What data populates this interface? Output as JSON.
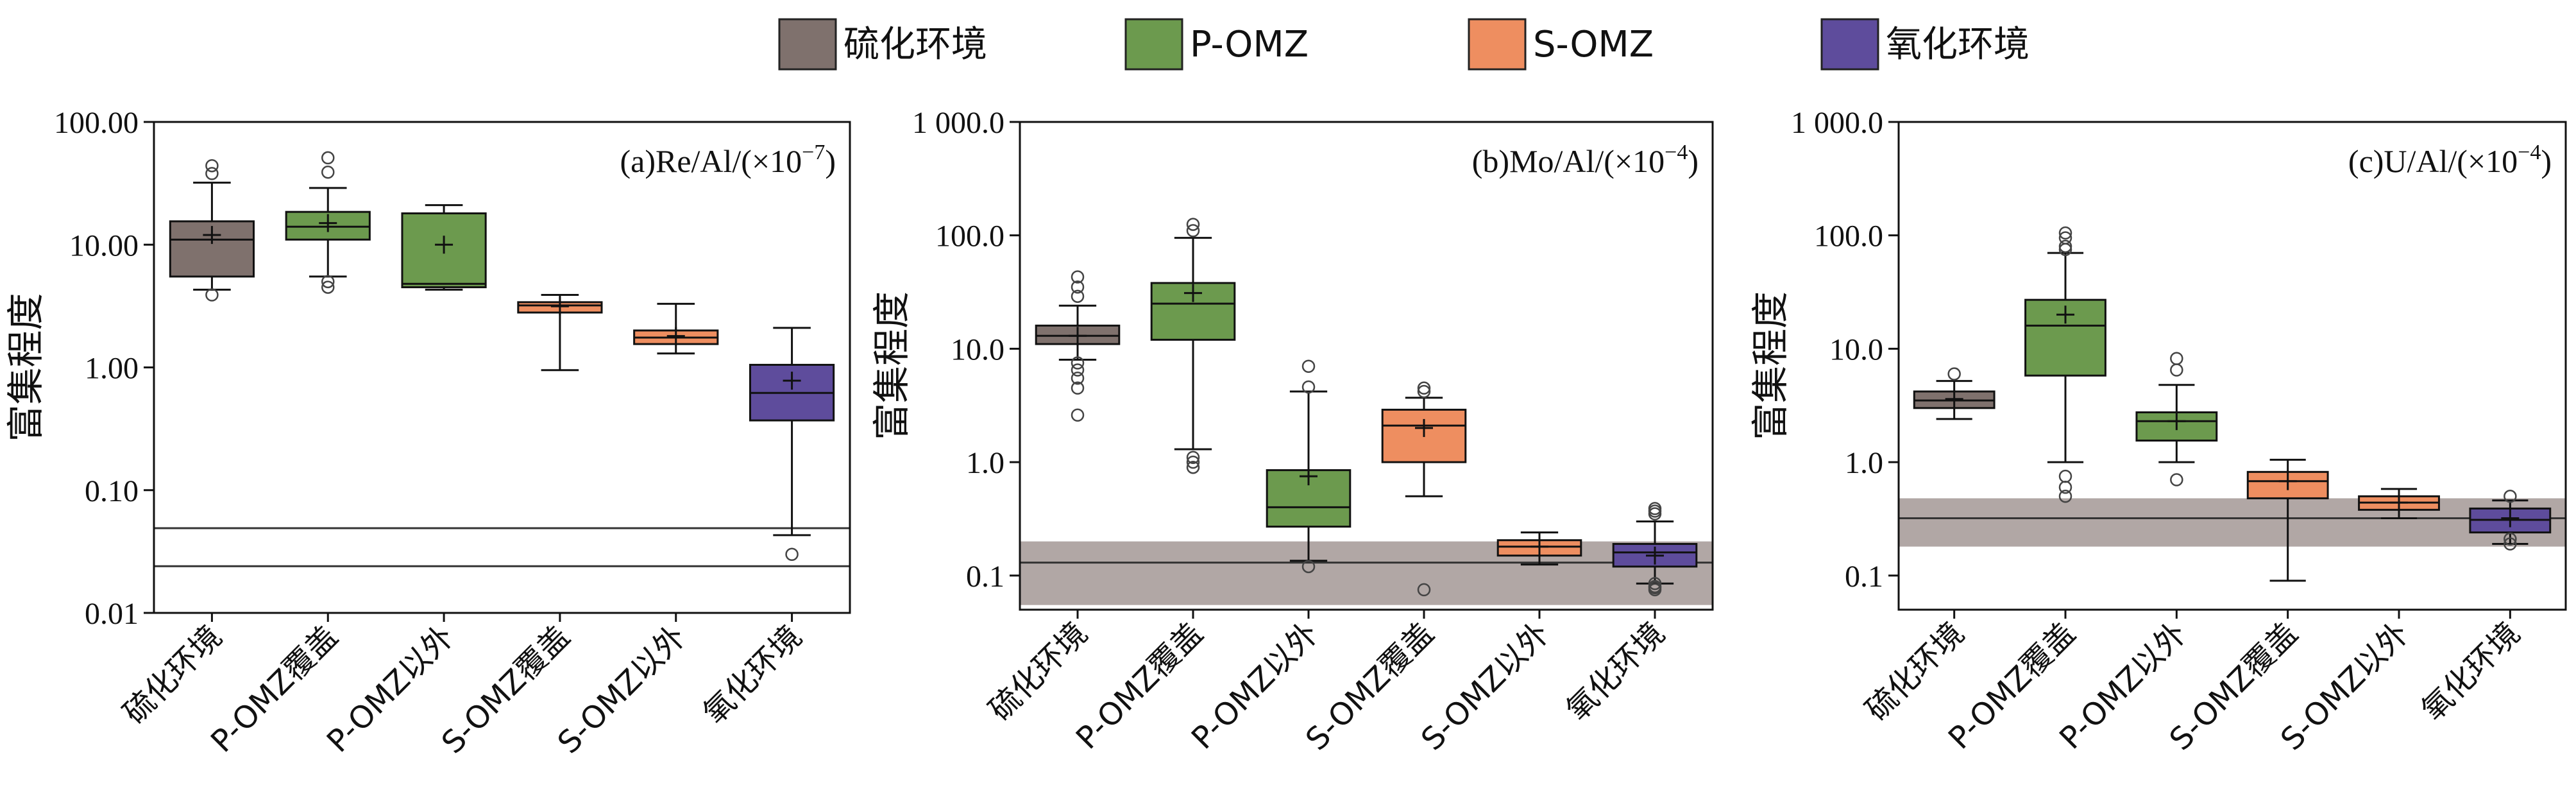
{
  "legend": {
    "items": [
      {
        "label": "硫化环境",
        "color": "#7f716d"
      },
      {
        "label": "P-OMZ",
        "color": "#6c9a4e"
      },
      {
        "label": "S-OMZ",
        "color": "#ee8e60"
      },
      {
        "label": "氧化环境",
        "color": "#5e4c9c"
      }
    ]
  },
  "chart_data": [
    {
      "type": "box",
      "title": "(a)Re/Al/(×10",
      "title_exp": "−7",
      "title_close": ")",
      "ylabel": "富集程度",
      "yscale": "log",
      "ylim": [
        0.01,
        100
      ],
      "yticks": [
        "100.00",
        "10.00",
        "1.00",
        "0.10",
        "0.01"
      ],
      "ytick_values": [
        100,
        10,
        1,
        0.1,
        0.01
      ],
      "categories": [
        "硫化环境",
        "P-OMZ覆盖",
        "P-OMZ以外",
        "S-OMZ覆盖",
        "S-OMZ以外",
        "氧化环境"
      ],
      "ref_lines": [
        0.049,
        0.024
      ],
      "ref_band": null,
      "boxes": [
        {
          "group": "硫化环境",
          "color": "#7f716d",
          "wlo": 4.3,
          "q1": 5.5,
          "med": 11.0,
          "q3": 15.5,
          "whi": 32,
          "mean": 12.0,
          "fliers": [
            3.9,
            38,
            44
          ]
        },
        {
          "group": "P-OMZ",
          "color": "#6c9a4e",
          "wlo": 5.5,
          "q1": 11.0,
          "med": 14.0,
          "q3": 18.5,
          "whi": 29,
          "mean": 15.0,
          "fliers": [
            4.5,
            5.0,
            39,
            51
          ]
        },
        {
          "group": "P-OMZ",
          "color": "#6c9a4e",
          "wlo": 4.3,
          "q1": 4.5,
          "med": 4.8,
          "q3": 18.0,
          "whi": 21,
          "mean": 10.0,
          "fliers": []
        },
        {
          "group": "S-OMZ",
          "color": "#ee8e60",
          "wlo": 0.95,
          "q1": 2.8,
          "med": 3.2,
          "q3": 3.4,
          "whi": 3.9,
          "mean": 3.15,
          "fliers": []
        },
        {
          "group": "S-OMZ",
          "color": "#ee8e60",
          "wlo": 1.3,
          "q1": 1.55,
          "med": 1.75,
          "q3": 2.0,
          "whi": 3.3,
          "mean": 1.8,
          "fliers": []
        },
        {
          "group": "氧化环境",
          "color": "#5e4c9c",
          "wlo": 0.043,
          "q1": 0.37,
          "med": 0.62,
          "q3": 1.05,
          "whi": 2.1,
          "mean": 0.78,
          "fliers": [
            0.03
          ]
        }
      ]
    },
    {
      "type": "box",
      "title": "(b)Mo/Al/(×10",
      "title_exp": "−4",
      "title_close": ")",
      "ylabel": "富集程度",
      "yscale": "log",
      "ylim": [
        0.05,
        1000
      ],
      "yticks": [
        "1 000.0",
        "100.0",
        "10.0",
        "1.0",
        "0.1"
      ],
      "ytick_values": [
        1000,
        100,
        10,
        1,
        0.1
      ],
      "categories": [
        "硫化环境",
        "P-OMZ覆盖",
        "P-OMZ以外",
        "S-OMZ覆盖",
        "S-OMZ以外",
        "氧化环境"
      ],
      "ref_lines": [
        0.13
      ],
      "ref_band": [
        0.055,
        0.2
      ],
      "boxes": [
        {
          "group": "硫化环境",
          "color": "#7f716d",
          "wlo": 8.0,
          "q1": 11.0,
          "med": 13.0,
          "q3": 16.0,
          "whi": 24,
          "mean": 13.0,
          "fliers": [
            2.6,
            4.5,
            5.5,
            6.5,
            7.5,
            29,
            35,
            43
          ]
        },
        {
          "group": "P-OMZ",
          "color": "#6c9a4e",
          "wlo": 1.3,
          "q1": 12.0,
          "med": 25.0,
          "q3": 38.0,
          "whi": 95,
          "mean": 31.0,
          "fliers": [
            0.9,
            1.0,
            1.1,
            110,
            125
          ]
        },
        {
          "group": "P-OMZ",
          "color": "#6c9a4e",
          "wlo": 0.135,
          "q1": 0.27,
          "med": 0.4,
          "q3": 0.85,
          "whi": 4.2,
          "mean": 0.75,
          "fliers": [
            0.12,
            4.6,
            7.0
          ]
        },
        {
          "group": "S-OMZ",
          "color": "#ee8e60",
          "wlo": 0.5,
          "q1": 1.0,
          "med": 2.1,
          "q3": 2.9,
          "whi": 3.7,
          "mean": 2.0,
          "fliers": [
            0.075,
            4.2,
            4.5
          ]
        },
        {
          "group": "S-OMZ",
          "color": "#ee8e60",
          "wlo": 0.125,
          "q1": 0.15,
          "med": 0.18,
          "q3": 0.205,
          "whi": 0.24,
          "mean": 0.18,
          "fliers": []
        },
        {
          "group": "氧化环境",
          "color": "#5e4c9c",
          "wlo": 0.085,
          "q1": 0.12,
          "med": 0.16,
          "q3": 0.19,
          "whi": 0.3,
          "mean": 0.15,
          "fliers": [
            0.075,
            0.078,
            0.08,
            0.085,
            0.35,
            0.37,
            0.39
          ]
        }
      ]
    },
    {
      "type": "box",
      "title": "(c)U/Al/(×10",
      "title_exp": "−4",
      "title_close": ")",
      "ylabel": "富集程度",
      "yscale": "log",
      "ylim": [
        0.05,
        1000
      ],
      "yticks": [
        "1 000.0",
        "100.0",
        "10.0",
        "1.0",
        "0.1"
      ],
      "ytick_values": [
        1000,
        100,
        10,
        1,
        0.1
      ],
      "categories": [
        "硫化环境",
        "P-OMZ覆盖",
        "P-OMZ以外",
        "S-OMZ覆盖",
        "S-OMZ以外",
        "氧化环境"
      ],
      "ref_lines": [
        0.32
      ],
      "ref_band": [
        0.18,
        0.48
      ],
      "boxes": [
        {
          "group": "硫化环境",
          "color": "#7f716d",
          "wlo": 2.4,
          "q1": 3.0,
          "med": 3.5,
          "q3": 4.2,
          "whi": 5.2,
          "mean": 3.6,
          "fliers": [
            6.0
          ]
        },
        {
          "group": "P-OMZ",
          "color": "#6c9a4e",
          "wlo": 1.0,
          "q1": 5.8,
          "med": 16.0,
          "q3": 27.0,
          "whi": 70,
          "mean": 20.0,
          "fliers": [
            0.5,
            0.6,
            0.75,
            75,
            80,
            95,
            105
          ]
        },
        {
          "group": "P-OMZ",
          "color": "#6c9a4e",
          "wlo": 1.0,
          "q1": 1.55,
          "med": 2.3,
          "q3": 2.75,
          "whi": 4.8,
          "mean": 2.3,
          "fliers": [
            0.7,
            6.5,
            8.2
          ]
        },
        {
          "group": "S-OMZ",
          "color": "#ee8e60",
          "wlo": 0.09,
          "q1": 0.48,
          "med": 0.68,
          "q3": 0.82,
          "whi": 1.05,
          "mean": 0.68,
          "fliers": []
        },
        {
          "group": "S-OMZ",
          "color": "#ee8e60",
          "wlo": 0.32,
          "q1": 0.38,
          "med": 0.44,
          "q3": 0.5,
          "whi": 0.58,
          "mean": 0.44,
          "fliers": []
        },
        {
          "group": "氧化环境",
          "color": "#5e4c9c",
          "wlo": 0.19,
          "q1": 0.24,
          "med": 0.31,
          "q3": 0.39,
          "whi": 0.46,
          "mean": 0.32,
          "fliers": [
            0.19,
            0.21,
            0.5
          ]
        }
      ]
    }
  ]
}
